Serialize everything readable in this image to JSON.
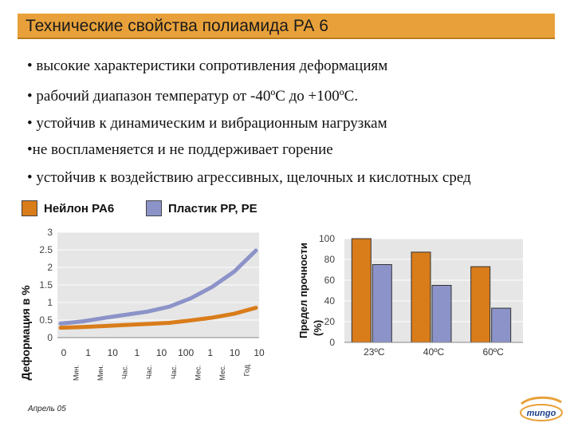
{
  "title": "Технические свойства полиамида РА 6",
  "bullets": [
    "• высокие характеристики сопротивления деформациям",
    "• рабочий диапазон температур от -40ºС до +100ºС.",
    "• устойчив к динамическим и вибрационным нагрузкам",
    "•не воспламеняется и не поддерживает горение",
    "• устойчив к воздействию агрессивных, щелочных и кислотных сред"
  ],
  "legend": [
    {
      "label": "Нейлон PA6",
      "color": "#d97c1a"
    },
    {
      "label": "Пластик PP, PE",
      "color": "#8c93c8"
    }
  ],
  "colors": {
    "accent": "#e8a13a",
    "nylon": "#d97c1a",
    "plastic": "#8c93c8",
    "plot_bg": "#e6e6e6"
  },
  "footer": {
    "date": "Апрель 05",
    "logo_text": "mungo"
  },
  "chart_data": [
    {
      "type": "line",
      "ylabel": "Деформация в %",
      "xlabel": "",
      "ylim": [
        0,
        3
      ],
      "yticks": [
        "0",
        "0.5",
        "1",
        "1.5",
        "2",
        "2.5",
        "3"
      ],
      "x_ticks": [
        "0",
        "1",
        "10",
        "1",
        "10",
        "100",
        "1",
        "10",
        "10"
      ],
      "x_units": [
        "Мин.",
        "Мин.",
        "Час.",
        "Час.",
        "Час.",
        "Мес.",
        "Мес.",
        "Год"
      ],
      "grid": true,
      "series": [
        {
          "name": "Нейлон PA6",
          "y": [
            0.28,
            0.3,
            0.33,
            0.36,
            0.39,
            0.42,
            0.49,
            0.57,
            0.68,
            0.85
          ]
        },
        {
          "name": "Пластик PP, PE",
          "y": [
            0.4,
            0.46,
            0.56,
            0.65,
            0.74,
            0.88,
            1.12,
            1.45,
            1.88,
            2.48
          ]
        }
      ]
    },
    {
      "type": "bar",
      "ylabel": "Предел прочности (%)",
      "xlabel": "",
      "ylim": [
        0,
        100
      ],
      "yticks": [
        "0",
        "20",
        "40",
        "60",
        "80",
        "100"
      ],
      "categories": [
        "23ºC",
        "40ºC",
        "60ºC"
      ],
      "grid": true,
      "series": [
        {
          "name": "Нейлон PA6",
          "values": [
            100,
            87,
            73
          ]
        },
        {
          "name": "Пластик PP, PE",
          "values": [
            75,
            55,
            33
          ]
        }
      ]
    }
  ]
}
